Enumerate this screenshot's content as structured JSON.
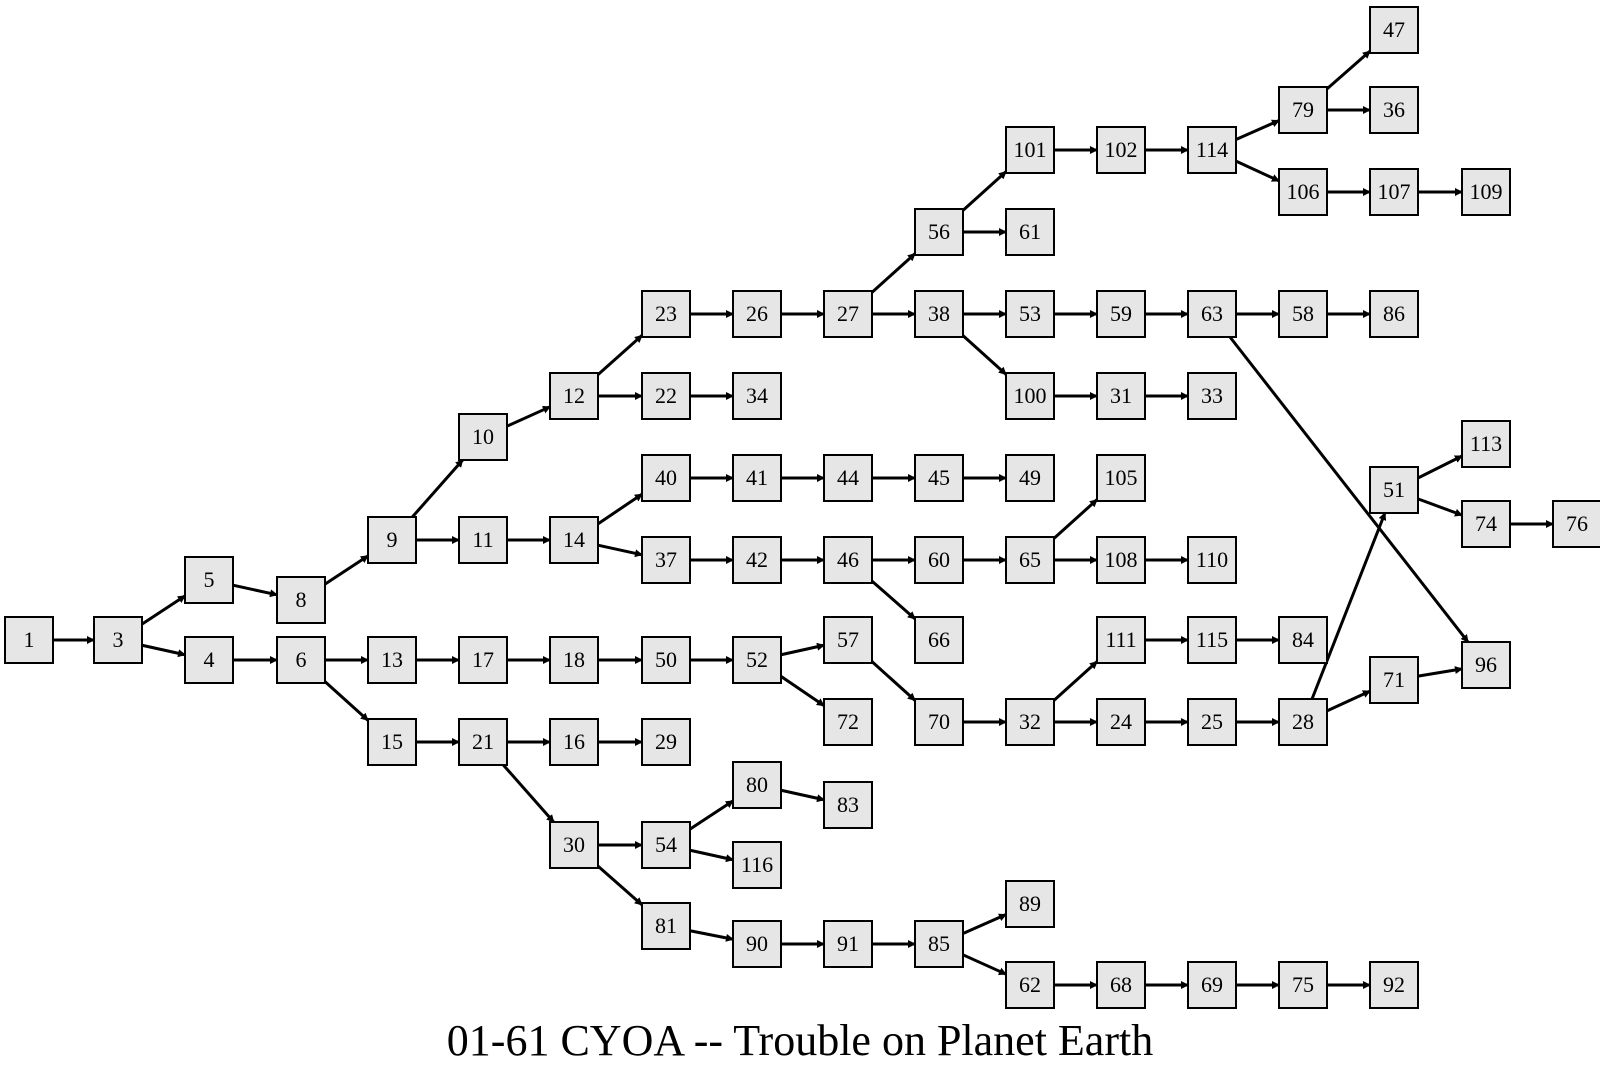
{
  "title": "01-61 CYOA -- Trouble on Planet Earth",
  "colors": {
    "node_fill": "#e6e6e6",
    "node_stroke": "#000000",
    "edge": "#000000"
  },
  "nodes": [
    "1",
    "3",
    "5",
    "4",
    "8",
    "6",
    "9",
    "13",
    "15",
    "10",
    "11",
    "17",
    "21",
    "12",
    "14",
    "18",
    "16",
    "30",
    "23",
    "22",
    "40",
    "37",
    "50",
    "29",
    "54",
    "81",
    "26",
    "34",
    "41",
    "42",
    "52",
    "80",
    "116",
    "90",
    "27",
    "44",
    "46",
    "57",
    "72",
    "83",
    "91",
    "56",
    "38",
    "45",
    "60",
    "66",
    "70",
    "85",
    "101",
    "61",
    "53",
    "100",
    "49",
    "65",
    "32",
    "89",
    "62",
    "102",
    "59",
    "31",
    "105",
    "108",
    "111",
    "24",
    "68",
    "114",
    "63",
    "33",
    "110",
    "115",
    "25",
    "69",
    "79",
    "106",
    "58",
    "84",
    "28",
    "75",
    "47",
    "36",
    "107",
    "86",
    "51",
    "71",
    "92",
    "109",
    "113",
    "74",
    "96",
    "76"
  ],
  "edges": [
    [
      "1",
      "3"
    ],
    [
      "3",
      "5"
    ],
    [
      "3",
      "4"
    ],
    [
      "5",
      "8"
    ],
    [
      "4",
      "6"
    ],
    [
      "8",
      "9"
    ],
    [
      "6",
      "13"
    ],
    [
      "6",
      "15"
    ],
    [
      "9",
      "10"
    ],
    [
      "9",
      "11"
    ],
    [
      "13",
      "17"
    ],
    [
      "15",
      "21"
    ],
    [
      "10",
      "12"
    ],
    [
      "11",
      "14"
    ],
    [
      "17",
      "18"
    ],
    [
      "21",
      "16"
    ],
    [
      "21",
      "30"
    ],
    [
      "12",
      "23"
    ],
    [
      "12",
      "22"
    ],
    [
      "14",
      "40"
    ],
    [
      "14",
      "37"
    ],
    [
      "18",
      "50"
    ],
    [
      "16",
      "29"
    ],
    [
      "30",
      "54"
    ],
    [
      "30",
      "81"
    ],
    [
      "23",
      "26"
    ],
    [
      "22",
      "34"
    ],
    [
      "40",
      "41"
    ],
    [
      "37",
      "42"
    ],
    [
      "50",
      "52"
    ],
    [
      "54",
      "80"
    ],
    [
      "54",
      "116"
    ],
    [
      "81",
      "90"
    ],
    [
      "26",
      "27"
    ],
    [
      "41",
      "44"
    ],
    [
      "42",
      "46"
    ],
    [
      "52",
      "57"
    ],
    [
      "52",
      "72"
    ],
    [
      "80",
      "83"
    ],
    [
      "90",
      "91"
    ],
    [
      "27",
      "56"
    ],
    [
      "27",
      "38"
    ],
    [
      "44",
      "45"
    ],
    [
      "46",
      "60"
    ],
    [
      "46",
      "66"
    ],
    [
      "57",
      "70"
    ],
    [
      "91",
      "85"
    ],
    [
      "56",
      "101"
    ],
    [
      "56",
      "61"
    ],
    [
      "38",
      "53"
    ],
    [
      "38",
      "100"
    ],
    [
      "45",
      "49"
    ],
    [
      "60",
      "65"
    ],
    [
      "70",
      "32"
    ],
    [
      "85",
      "89"
    ],
    [
      "85",
      "62"
    ],
    [
      "101",
      "102"
    ],
    [
      "53",
      "59"
    ],
    [
      "100",
      "31"
    ],
    [
      "65",
      "105"
    ],
    [
      "65",
      "108"
    ],
    [
      "32",
      "111"
    ],
    [
      "32",
      "24"
    ],
    [
      "62",
      "68"
    ],
    [
      "102",
      "114"
    ],
    [
      "59",
      "63"
    ],
    [
      "31",
      "33"
    ],
    [
      "108",
      "110"
    ],
    [
      "111",
      "115"
    ],
    [
      "24",
      "25"
    ],
    [
      "68",
      "69"
    ],
    [
      "114",
      "79"
    ],
    [
      "114",
      "106"
    ],
    [
      "63",
      "58"
    ],
    [
      "63",
      "96"
    ],
    [
      "115",
      "84"
    ],
    [
      "25",
      "28"
    ],
    [
      "69",
      "75"
    ],
    [
      "79",
      "47"
    ],
    [
      "79",
      "36"
    ],
    [
      "106",
      "107"
    ],
    [
      "58",
      "86"
    ],
    [
      "28",
      "51"
    ],
    [
      "28",
      "71"
    ],
    [
      "75",
      "92"
    ],
    [
      "107",
      "109"
    ],
    [
      "51",
      "113"
    ],
    [
      "51",
      "74"
    ],
    [
      "71",
      "96"
    ],
    [
      "74",
      "76"
    ]
  ]
}
